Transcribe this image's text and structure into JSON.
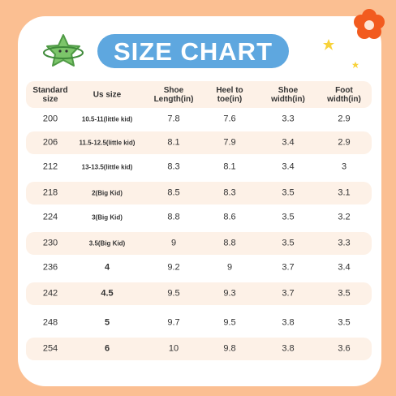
{
  "title": "SIZE CHART",
  "table": {
    "header": [
      "Standard\nsize",
      "Us size",
      "Shoe\nLength(in)",
      "Heel to\ntoe(in)",
      "Shoe\nwidth(in)",
      "Foot\nwidth(in)"
    ],
    "rows": [
      [
        200,
        "10.5-11(little kid)",
        7.8,
        7.6,
        3.3,
        2.9
      ],
      [
        206,
        "11.5-12.5(little kid)",
        8.1,
        7.9,
        3.4,
        2.9
      ],
      [
        212,
        "13-13.5(little kid)",
        8.3,
        8.1,
        3.4,
        3
      ],
      [
        218,
        "2(Big Kid)",
        8.5,
        8.3,
        3.5,
        3.1
      ],
      [
        224,
        "3(Big Kid)",
        8.8,
        8.6,
        3.5,
        3.2
      ],
      [
        230,
        "3.5(Big Kid)",
        9,
        8.8,
        3.5,
        3.3
      ],
      [
        236,
        "4",
        9.2,
        9,
        3.7,
        3.4
      ],
      [
        242,
        "4.5",
        9.5,
        9.3,
        3.7,
        3.5
      ],
      [
        248,
        "5",
        9.7,
        9.5,
        3.8,
        3.5
      ],
      [
        254,
        "6",
        10,
        9.8,
        3.8,
        3.6
      ]
    ]
  }
}
